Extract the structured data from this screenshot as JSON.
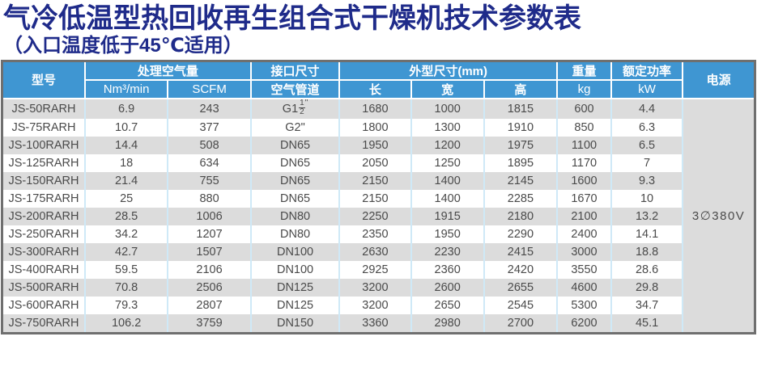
{
  "title": "气冷低温型热回收再生组合式干燥机技术参数表",
  "subtitle": "（入口温度低于45℃适用）",
  "colors": {
    "title_navy": "#1f2b8a",
    "header_blue": "#3f96d2",
    "stripe_gray": "#dcdcdc",
    "grid_blue": "#cfe9f7",
    "border_gray": "#6f6f6f",
    "body_text": "#4a4a4a"
  },
  "table": {
    "header": {
      "model": "型号",
      "air_volume": "处理空气量",
      "air_volume_units": [
        "Nm³/min",
        "SCFM"
      ],
      "interface": "接口尺寸",
      "air_pipe": "空气管道",
      "dimensions": "外型尺寸(mm)",
      "dim_subs": [
        "长",
        "宽",
        "高"
      ],
      "weight": "重量",
      "weight_unit": "kg",
      "rated_power": "额定功率",
      "power_unit": "kW",
      "supply": "电源"
    },
    "power_supply": "3∅380V",
    "columns": [
      "model",
      "nm3-per-min",
      "scfm",
      "air-pipe",
      "length",
      "width",
      "height",
      "weight-kg",
      "power-kw"
    ],
    "rows": [
      [
        "JS-50RARH",
        "6.9",
        "243",
        "G1 1/2\"",
        "1680",
        "1000",
        "1815",
        "600",
        "4.4"
      ],
      [
        "JS-75RARH",
        "10.7",
        "377",
        "G2\"",
        "1800",
        "1300",
        "1910",
        "850",
        "6.3"
      ],
      [
        "JS-100RARH",
        "14.4",
        "508",
        "DN65",
        "1950",
        "1200",
        "1975",
        "1100",
        "6.5"
      ],
      [
        "JS-125RARH",
        "18",
        "634",
        "DN65",
        "2050",
        "1250",
        "1895",
        "1170",
        "7"
      ],
      [
        "JS-150RARH",
        "21.4",
        "755",
        "DN65",
        "2150",
        "1400",
        "2145",
        "1600",
        "9.3"
      ],
      [
        "JS-175RARH",
        "25",
        "880",
        "DN65",
        "2150",
        "1400",
        "2285",
        "1670",
        "10"
      ],
      [
        "JS-200RARH",
        "28.5",
        "1006",
        "DN80",
        "2250",
        "1915",
        "2180",
        "2100",
        "13.2"
      ],
      [
        "JS-250RARH",
        "34.2",
        "1207",
        "DN80",
        "2350",
        "1950",
        "2290",
        "2400",
        "14.1"
      ],
      [
        "JS-300RARH",
        "42.7",
        "1507",
        "DN100",
        "2630",
        "2230",
        "2415",
        "3000",
        "18.8"
      ],
      [
        "JS-400RARH",
        "59.5",
        "2106",
        "DN100",
        "2925",
        "2360",
        "2420",
        "3550",
        "28.6"
      ],
      [
        "JS-500RARH",
        "70.8",
        "2506",
        "DN125",
        "3200",
        "2600",
        "2655",
        "4600",
        "29.8"
      ],
      [
        "JS-600RARH",
        "79.3",
        "2807",
        "DN125",
        "3200",
        "2650",
        "2545",
        "5300",
        "34.7"
      ],
      [
        "JS-750RARH",
        "106.2",
        "3759",
        "DN150",
        "3360",
        "2980",
        "2700",
        "6200",
        "45.1"
      ]
    ]
  }
}
